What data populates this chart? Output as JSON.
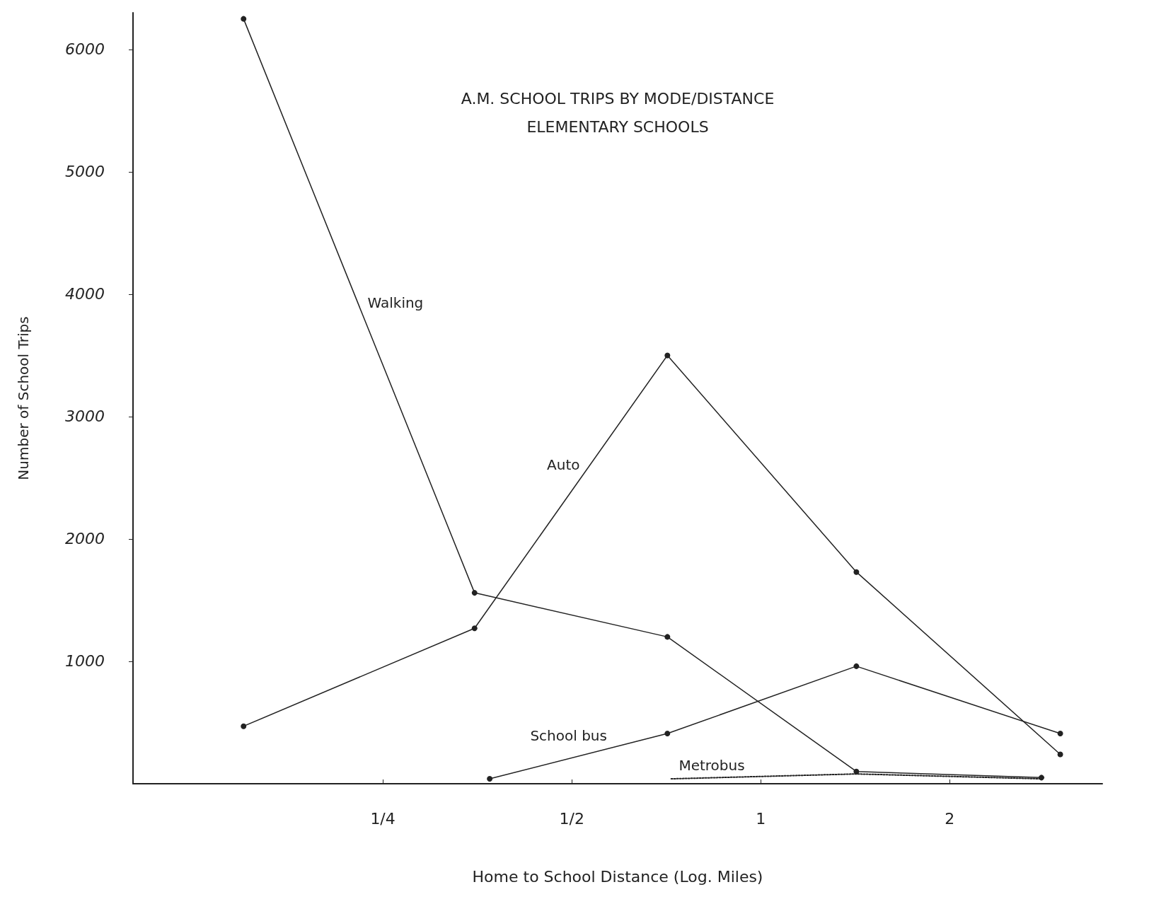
{
  "chart_data": {
    "type": "line",
    "title": "A.M. SCHOOL TRIPS BY MODE/DISTANCE",
    "subtitle": "ELEMENTARY SCHOOLS",
    "xlabel": "Home to School Distance (Log. Miles)",
    "ylabel": "Number of School Trips",
    "log": "x",
    "xlim": [
      0.1,
      3.5
    ],
    "xticks": [
      {
        "value": 0.25,
        "label": "1/4"
      },
      {
        "value": 0.5,
        "label": "1/2"
      },
      1,
      2
    ],
    "ylim": [
      0,
      6300
    ],
    "yticks": [
      1000,
      2000,
      3000,
      4000,
      5000,
      6000
    ],
    "grid": false,
    "legend": false,
    "marker": "circle",
    "line_style": "solid",
    "series": [
      {
        "name": "Walking",
        "color": "#222222",
        "x": [
          0.15,
          0.35,
          0.71,
          1.42,
          2.8
        ],
        "values": [
          6250,
          1560,
          1200,
          100,
          50
        ]
      },
      {
        "name": "Auto",
        "color": "#222222",
        "x": [
          0.15,
          0.35,
          0.71,
          1.42,
          3.0
        ],
        "values": [
          470,
          1270,
          3500,
          1730,
          240
        ]
      },
      {
        "name": "School bus",
        "color": "#222222",
        "x": [
          0.37,
          0.71,
          1.42,
          3.0
        ],
        "values": [
          40,
          410,
          960,
          410
        ]
      },
      {
        "name": "Metrobus",
        "color": "#222222",
        "line_style": "dotted",
        "marker": "none",
        "x": [
          0.72,
          1.42,
          2.8
        ],
        "values": [
          40,
          80,
          40
        ]
      }
    ]
  }
}
